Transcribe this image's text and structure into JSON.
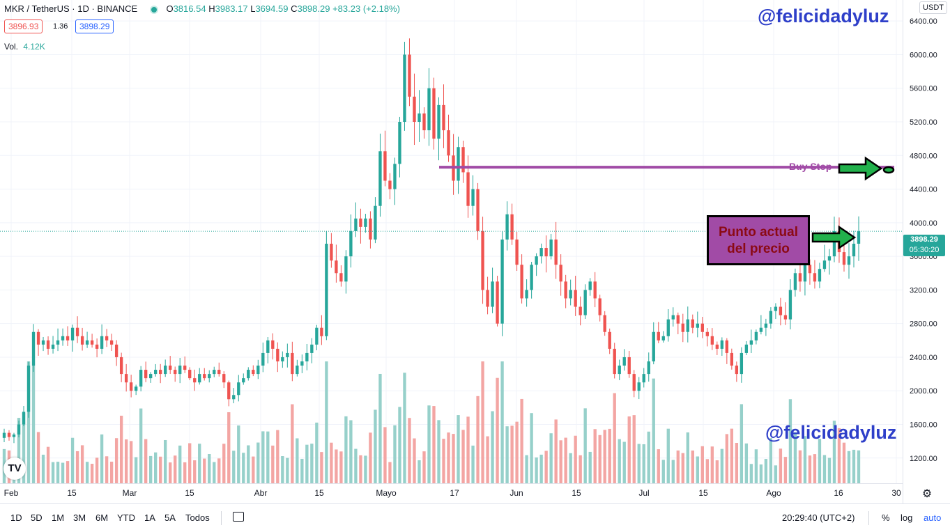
{
  "header": {
    "symbol": "MKR / TetherUS · 1D · BINANCE",
    "open_label": "O",
    "open": "3816.54",
    "high_label": "H",
    "high": "3983.17",
    "low_label": "L",
    "low": "3694.59",
    "close_label": "C",
    "close": "3898.29",
    "change": "+83.23 (+2.18%)",
    "bid": "3896.93",
    "spread": "1.36",
    "ask": "3898.29",
    "volume_label": "Vol.",
    "volume": "4.12K"
  },
  "currency_label": "USDT",
  "watermarks": [
    "@felicidadyluz",
    "@felicidadyluz"
  ],
  "annotations": {
    "current_price_note": "Punto actual del precio",
    "buy_stop_label": "Buy Stop",
    "buy_stop_level": 4660
  },
  "price_tag": {
    "price": "3898.29",
    "countdown": "05:30:20"
  },
  "bottom_bar": {
    "ranges": [
      "1D",
      "5D",
      "1M",
      "3M",
      "6M",
      "YTD",
      "1A",
      "5A",
      "Todos"
    ],
    "clock": "20:29:40 (UTC+2)",
    "percent_label": "%",
    "log_label": "log",
    "auto_label": "auto"
  },
  "colors": {
    "up": "#26a69a",
    "down": "#ef5350",
    "vol_up": "#96d0ca",
    "vol_down": "#f3a5a3",
    "buy_stop_line": "#a14ba6",
    "arrow": "#22b14c"
  },
  "chart_data": {
    "type": "candlestick",
    "y_axis": {
      "ticks": [
        1200,
        1600,
        2000,
        2400,
        2800,
        3200,
        3600,
        4000,
        4400,
        4800,
        5200,
        5600,
        6000,
        6400
      ],
      "ylim": [
        900,
        6650
      ],
      "side": "right"
    },
    "x_axis": {
      "ticks": [
        "Feb",
        "15",
        "Mar",
        "15",
        "Abr",
        "15",
        "Mayo",
        "17",
        "Jun",
        "15",
        "Jul",
        "15",
        "Ago",
        "16",
        "30"
      ]
    },
    "close_series": [
      1500,
      1450,
      1480,
      1600,
      1750,
      2300,
      2700,
      2550,
      2600,
      2500,
      2550,
      2600,
      2650,
      2600,
      2750,
      2650,
      2550,
      2600,
      2550,
      2500,
      2650,
      2600,
      2550,
      2400,
      2200,
      2100,
      2000,
      2050,
      2250,
      2150,
      2200,
      2250,
      2200,
      2300,
      2250,
      2200,
      2300,
      2250,
      2150,
      2100,
      2200,
      2150,
      2200,
      2250,
      2200,
      2100,
      1900,
      1950,
      2100,
      2150,
      2250,
      2200,
      2300,
      2450,
      2600,
      2500,
      2350,
      2400,
      2450,
      2200,
      2300,
      2350,
      2450,
      2550,
      2750,
      2650,
      3750,
      3550,
      3400,
      3300,
      3600,
      3900,
      4050,
      3950,
      4050,
      3800,
      4200,
      4850,
      4500,
      4400,
      4700,
      5200,
      6000,
      5500,
      5200,
      5300,
      5100,
      5600,
      5000,
      5400,
      5100,
      4800,
      4500,
      4900,
      4600,
      4200,
      4400,
      3900,
      3200,
      3000,
      3300,
      2800,
      3800,
      4100,
      3800,
      3500,
      3100,
      3200,
      3500,
      3600,
      3700,
      3600,
      3800,
      3500,
      3300,
      3100,
      3200,
      3000,
      2900,
      3200,
      3300,
      3100,
      2900,
      2700,
      2500,
      2200,
      2300,
      2400,
      2200,
      2000,
      2100,
      2200,
      2350,
      2700,
      2600,
      2650,
      2850,
      2900,
      2800,
      2700,
      2850,
      2750,
      2800,
      2700,
      2650,
      2550,
      2500,
      2600,
      2450,
      2300,
      2200,
      2450,
      2550,
      2600,
      2700,
      2750,
      2800,
      2950,
      3000,
      2900,
      2850,
      3200,
      3400,
      3300,
      3500,
      3400,
      3300,
      3450,
      3550,
      3600,
      3900,
      3650,
      3500,
      3600,
      3750,
      3898.29
    ],
    "current_price": 3898.29
  }
}
